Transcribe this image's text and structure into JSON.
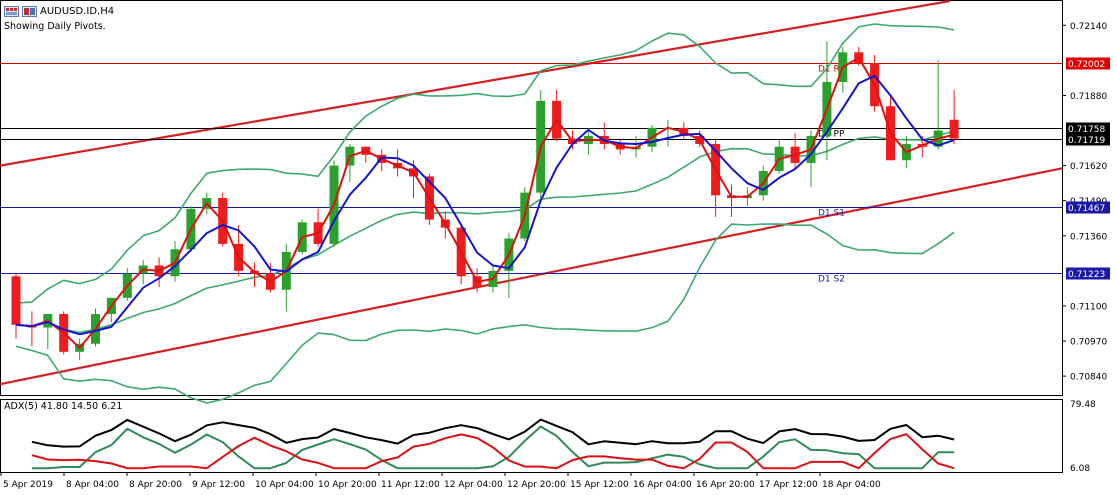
{
  "header": {
    "symbol": "AUDUSD.ID,H4",
    "subtitle": "Showing Daily Pivots."
  },
  "pivots": [
    {
      "name": "D1 R1",
      "price": "0.72002",
      "color": "#dd0000"
    },
    {
      "name": "D1 PP",
      "price": "0.71758",
      "color": "#000000"
    },
    {
      "name": "",
      "price": "0.71719",
      "color": "#000000"
    },
    {
      "name": "D1 S1",
      "price": "0.71467",
      "color": "#1a1aa6"
    },
    {
      "name": "D1 S2",
      "price": "0.71223",
      "color": "#1a1aa6"
    }
  ],
  "price_axis_labels": [
    "0.72140",
    "0.71880",
    "0.71620",
    "0.71490",
    "0.71360",
    "0.71100",
    "0.70970",
    "0.70840"
  ],
  "time_axis_labels": [
    "5 Apr 2019",
    "8 Apr 04:00",
    "8 Apr 20:00",
    "9 Apr 12:00",
    "10 Apr 04:00",
    "10 Apr 20:00",
    "11 Apr 12:00",
    "12 Apr 04:00",
    "12 Apr 20:00",
    "15 Apr 12:00",
    "16 Apr 04:00",
    "16 Apr 20:00",
    "17 Apr 12:00",
    "18 Apr 04:00"
  ],
  "indicator": {
    "label": "ADX(5) 41.80 14.50 6.21",
    "adx": 41.8,
    "plus_di": 14.5,
    "minus_di": 6.21,
    "scale_top": "79.48",
    "scale_bottom": "6.08"
  },
  "colors": {
    "bull": "#2ca02c",
    "bear": "#ee1c1c",
    "trend": "#d42020",
    "bollinger": "#3caa6e",
    "ma_fast": "#dd1111",
    "ma_slow": "#1515cc",
    "adx_line": "#000000",
    "plus_di": "#2e8b57",
    "minus_di": "#dd1111"
  },
  "chart_data": {
    "type": "candlestick",
    "symbol": "AUDUSD",
    "timeframe": "H4",
    "ylim": [
      0.7077,
      0.7223
    ],
    "candles": [
      [
        0.7121,
        0.7122,
        0.7098,
        0.7103
      ],
      [
        0.7103,
        0.7108,
        0.7095,
        0.7102
      ],
      [
        0.7102,
        0.7107,
        0.7094,
        0.7107
      ],
      [
        0.7107,
        0.7108,
        0.7092,
        0.7093
      ],
      [
        0.7093,
        0.7098,
        0.709,
        0.7096
      ],
      [
        0.7096,
        0.7109,
        0.7095,
        0.7107
      ],
      [
        0.7107,
        0.7113,
        0.7104,
        0.7113
      ],
      [
        0.7113,
        0.7124,
        0.7112,
        0.7122
      ],
      [
        0.7122,
        0.7127,
        0.7118,
        0.7125
      ],
      [
        0.7125,
        0.7128,
        0.7117,
        0.7121
      ],
      [
        0.7121,
        0.7134,
        0.7119,
        0.7131
      ],
      [
        0.7131,
        0.7147,
        0.713,
        0.7146
      ],
      [
        0.7146,
        0.7152,
        0.7144,
        0.715
      ],
      [
        0.715,
        0.7152,
        0.7132,
        0.7133
      ],
      [
        0.7133,
        0.714,
        0.7121,
        0.7123
      ],
      [
        0.7123,
        0.7126,
        0.7117,
        0.7122
      ],
      [
        0.7122,
        0.7126,
        0.7115,
        0.7116
      ],
      [
        0.7116,
        0.7133,
        0.7108,
        0.713
      ],
      [
        0.713,
        0.7142,
        0.7129,
        0.7141
      ],
      [
        0.7141,
        0.7146,
        0.7132,
        0.7133
      ],
      [
        0.7133,
        0.7164,
        0.7132,
        0.7162
      ],
      [
        0.7162,
        0.717,
        0.7156,
        0.7169
      ],
      [
        0.7169,
        0.7169,
        0.7163,
        0.7166
      ],
      [
        0.7166,
        0.7168,
        0.716,
        0.7163
      ],
      [
        0.7163,
        0.7168,
        0.7158,
        0.7161
      ],
      [
        0.7161,
        0.7164,
        0.715,
        0.7158
      ],
      [
        0.7158,
        0.7159,
        0.714,
        0.7142
      ],
      [
        0.7142,
        0.7145,
        0.7135,
        0.7139
      ],
      [
        0.7139,
        0.714,
        0.7118,
        0.7121
      ],
      [
        0.7121,
        0.7124,
        0.7115,
        0.7117
      ],
      [
        0.7117,
        0.7125,
        0.7115,
        0.7123
      ],
      [
        0.7123,
        0.7137,
        0.7113,
        0.7135
      ],
      [
        0.7135,
        0.7154,
        0.7134,
        0.7152
      ],
      [
        0.7152,
        0.719,
        0.715,
        0.7186
      ],
      [
        0.7186,
        0.719,
        0.7171,
        0.7172
      ],
      [
        0.7172,
        0.7175,
        0.7168,
        0.717
      ],
      [
        0.717,
        0.7176,
        0.7166,
        0.7173
      ],
      [
        0.7173,
        0.7178,
        0.7168,
        0.717
      ],
      [
        0.717,
        0.7172,
        0.7166,
        0.7168
      ],
      [
        0.7168,
        0.7173,
        0.7165,
        0.7169
      ],
      [
        0.7169,
        0.7177,
        0.7167,
        0.7176
      ],
      [
        0.7176,
        0.7179,
        0.7169,
        0.7176
      ],
      [
        0.7176,
        0.7178,
        0.7172,
        0.7173
      ],
      [
        0.7173,
        0.7175,
        0.7169,
        0.717
      ],
      [
        0.717,
        0.7172,
        0.7143,
        0.7151
      ],
      [
        0.7151,
        0.7155,
        0.7143,
        0.715
      ],
      [
        0.715,
        0.7154,
        0.7147,
        0.7151
      ],
      [
        0.7151,
        0.7162,
        0.7149,
        0.716
      ],
      [
        0.716,
        0.7172,
        0.7159,
        0.7169
      ],
      [
        0.7169,
        0.7174,
        0.7161,
        0.7163
      ],
      [
        0.7163,
        0.7175,
        0.7154,
        0.7173
      ],
      [
        0.7173,
        0.7208,
        0.7164,
        0.7193
      ],
      [
        0.7193,
        0.7206,
        0.7189,
        0.7204
      ],
      [
        0.7204,
        0.7206,
        0.7199,
        0.72
      ],
      [
        0.72,
        0.7203,
        0.7182,
        0.7184
      ],
      [
        0.7184,
        0.7188,
        0.7164,
        0.7164
      ],
      [
        0.7164,
        0.7173,
        0.7161,
        0.717
      ],
      [
        0.717,
        0.7173,
        0.7165,
        0.7169
      ],
      [
        0.7169,
        0.7201,
        0.7168,
        0.7175
      ],
      [
        0.7179,
        0.719,
        0.717,
        0.7172
      ]
    ]
  }
}
